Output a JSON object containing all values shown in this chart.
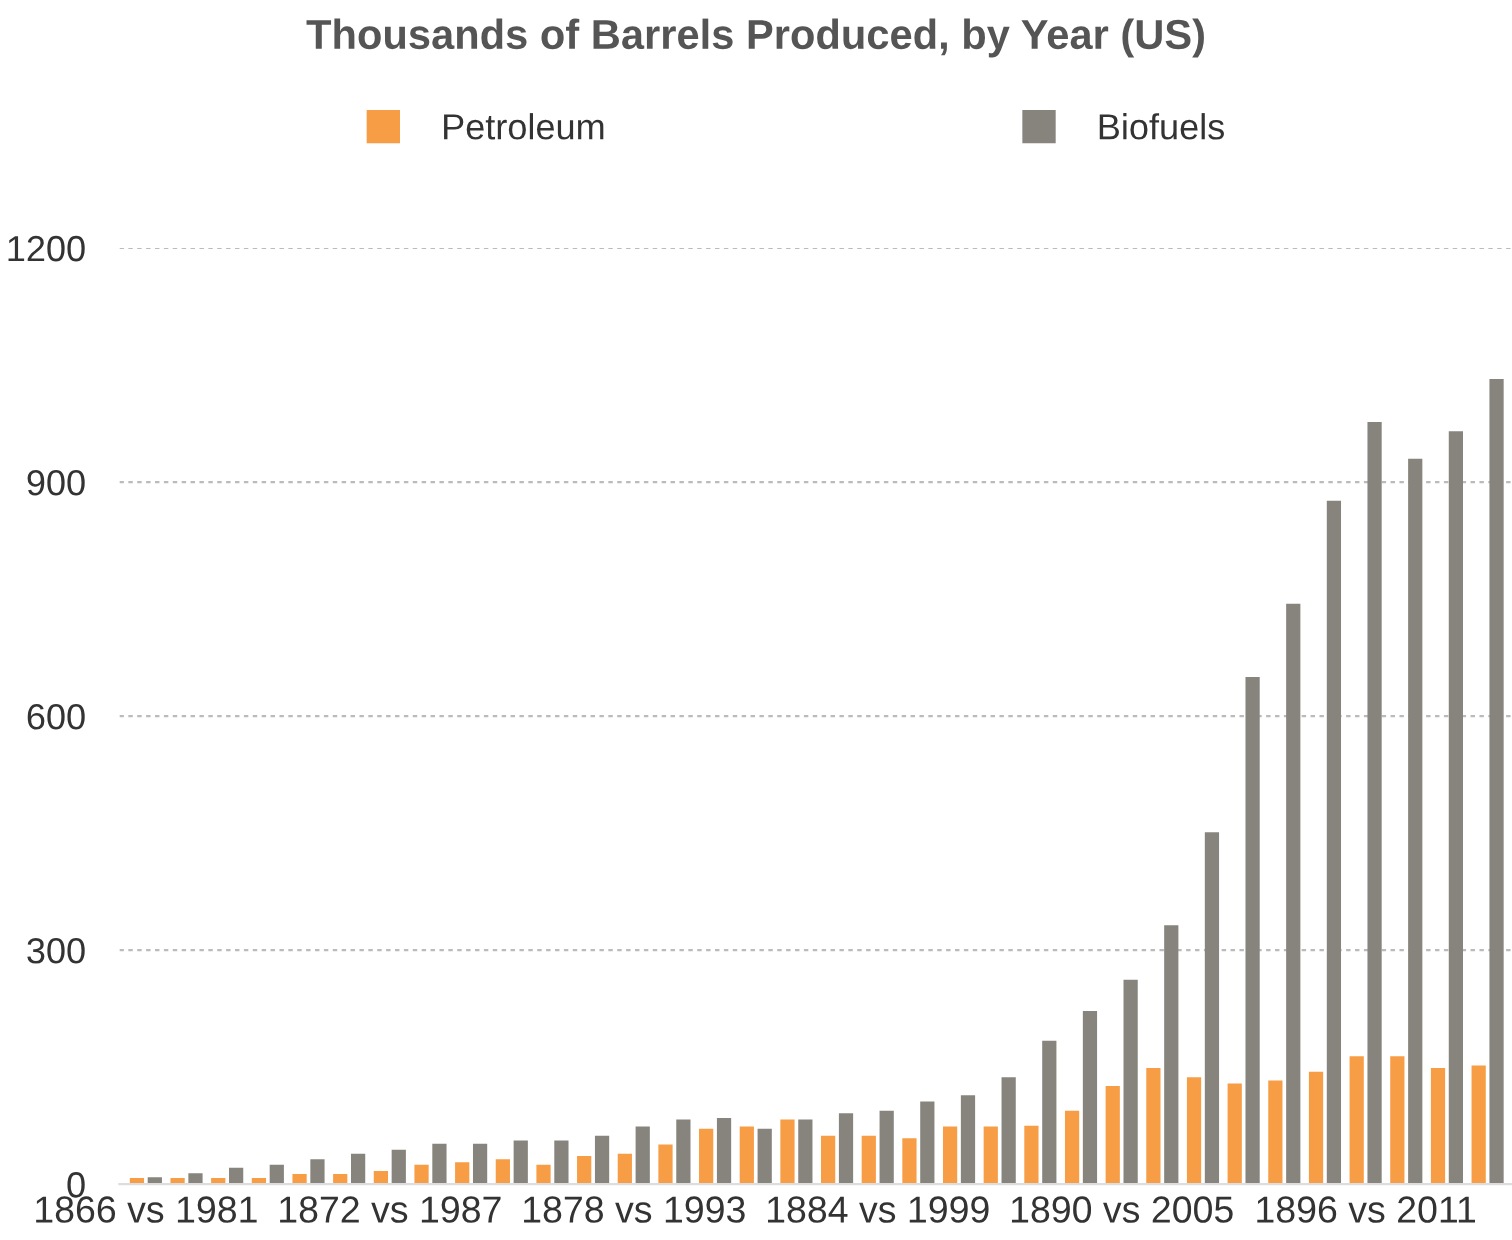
{
  "chart_data": {
    "type": "bar",
    "title": "Thousands of Barrels Produced, by Year (US)",
    "categories": [
      "1866 vs 1981",
      null,
      null,
      null,
      null,
      null,
      "1872 vs 1987",
      null,
      null,
      null,
      null,
      null,
      "1878 vs 1993",
      null,
      null,
      null,
      null,
      null,
      "1884 vs 1999",
      null,
      null,
      null,
      null,
      null,
      "1890 vs 2005",
      null,
      null,
      null,
      null,
      null,
      "1896 vs 2011",
      null,
      null,
      null
    ],
    "series": [
      {
        "name": "Petroleum",
        "color": "#f79d45",
        "values": [
          8,
          8,
          8,
          8,
          13,
          13,
          17,
          25,
          28,
          32,
          25,
          36,
          39,
          51,
          71,
          74,
          83,
          62,
          62,
          59,
          74,
          74,
          75,
          94,
          126,
          149,
          137,
          129,
          133,
          144,
          164,
          164,
          149,
          152
        ]
      },
      {
        "name": "Biofuels",
        "color": "#87847d",
        "values": [
          9,
          14,
          21,
          25,
          32,
          39,
          44,
          52,
          52,
          56,
          56,
          62,
          74,
          83,
          85,
          71,
          83,
          91,
          94,
          106,
          114,
          137,
          184,
          222,
          262,
          332,
          451,
          650,
          744,
          876,
          977,
          930,
          965,
          1032
        ]
      }
    ],
    "ylim": [
      0,
      1200
    ],
    "yticks": [
      0,
      300,
      600,
      900,
      1200
    ],
    "grid": "y",
    "legend": "top"
  }
}
